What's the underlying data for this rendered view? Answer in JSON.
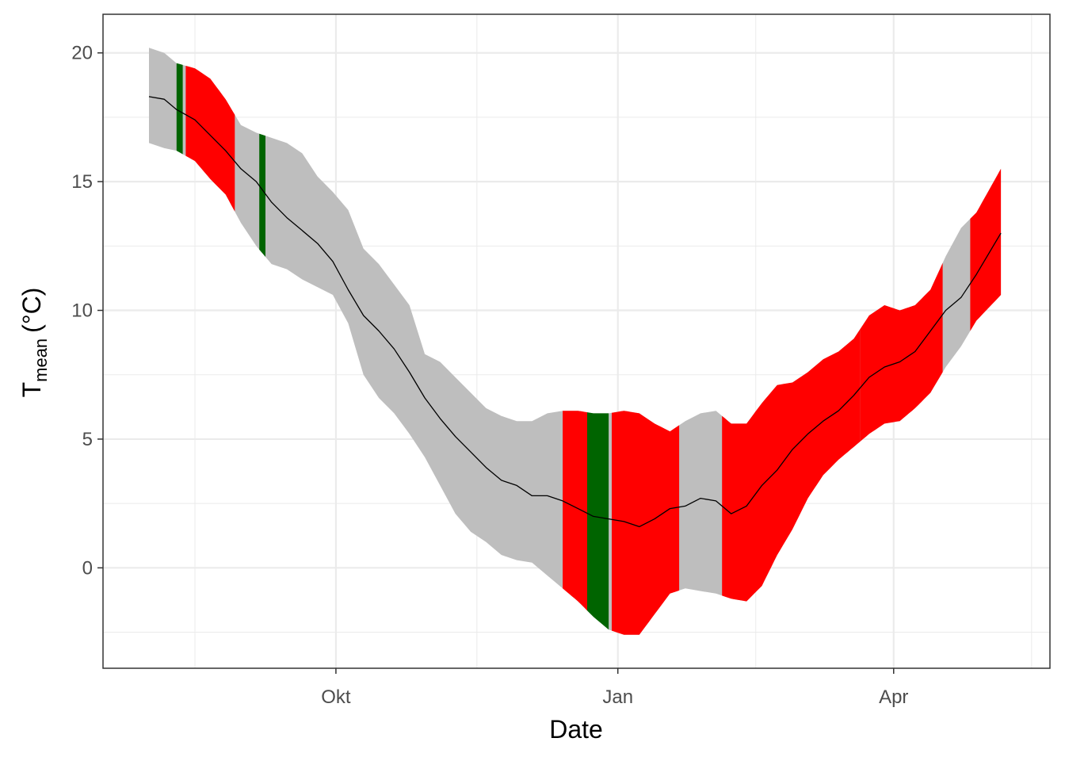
{
  "chart_data": {
    "type": "area",
    "xlabel": "Date",
    "ylabel_main": "T",
    "ylabel_subscript": "mean",
    "ylabel_unit": "(°C)",
    "x_range": [
      "2021-07-17",
      "2022-05-22"
    ],
    "ylim": [
      -3.9,
      21.5
    ],
    "y_ticks": [
      0,
      5,
      10,
      15,
      20
    ],
    "x_ticks": [
      {
        "date": "2021-10-01",
        "label": "Okt"
      },
      {
        "date": "2022-01-01",
        "label": "Jan"
      },
      {
        "date": "2022-04-01",
        "label": "Apr"
      }
    ],
    "x_minor_ticks": [
      "2021-08-16",
      "2021-11-16",
      "2022-02-15",
      "2022-05-16"
    ],
    "grid": true,
    "colors": {
      "ribbon": "#bebebe",
      "warm_anomaly": "#ff0000",
      "cold_anomaly": "#006400",
      "mean_line": "#000000",
      "grid": "#ebebeb",
      "panel_border": "#333333"
    },
    "series": [
      {
        "name": "Tmean",
        "x": [
          "2021-08-01",
          "2021-08-06",
          "2021-08-10",
          "2021-08-16",
          "2021-08-21",
          "2021-08-26",
          "2021-08-31",
          "2021-09-05",
          "2021-09-10",
          "2021-09-15",
          "2021-09-20",
          "2021-09-25",
          "2021-09-30",
          "2021-10-05",
          "2021-10-10",
          "2021-10-15",
          "2021-10-20",
          "2021-10-25",
          "2021-10-30",
          "2021-11-04",
          "2021-11-09",
          "2021-11-14",
          "2021-11-19",
          "2021-11-24",
          "2021-11-29",
          "2021-12-04",
          "2021-12-09",
          "2021-12-14",
          "2021-12-19",
          "2021-12-24",
          "2021-12-29",
          "2022-01-03",
          "2022-01-08",
          "2022-01-13",
          "2022-01-18",
          "2022-01-23",
          "2022-01-28",
          "2022-02-02",
          "2022-02-07",
          "2022-02-12",
          "2022-02-17",
          "2022-02-22",
          "2022-02-27",
          "2022-03-04",
          "2022-03-09",
          "2022-03-14",
          "2022-03-19",
          "2022-03-24",
          "2022-03-29",
          "2022-04-03",
          "2022-04-08",
          "2022-04-13",
          "2022-04-18",
          "2022-04-23",
          "2022-04-28",
          "2022-05-06"
        ],
        "mean": [
          18.3,
          18.2,
          17.8,
          17.4,
          16.8,
          16.2,
          15.5,
          15.0,
          14.2,
          13.6,
          13.1,
          12.6,
          11.9,
          10.8,
          9.8,
          9.2,
          8.5,
          7.6,
          6.6,
          5.8,
          5.1,
          4.5,
          3.9,
          3.4,
          3.2,
          2.8,
          2.8,
          2.6,
          2.3,
          2.0,
          1.9,
          1.8,
          1.6,
          1.9,
          2.3,
          2.4,
          2.7,
          2.6,
          2.1,
          2.4,
          3.2,
          3.8,
          4.6,
          5.2,
          5.7,
          6.1,
          6.7,
          7.4,
          7.8,
          8.0,
          8.4,
          9.2,
          10.0,
          10.5,
          11.4,
          13.0
        ],
        "upper": [
          20.2,
          20.0,
          19.6,
          19.4,
          19.0,
          18.2,
          17.2,
          16.9,
          16.7,
          16.5,
          16.1,
          15.2,
          14.6,
          13.9,
          12.4,
          11.8,
          11.0,
          10.2,
          8.3,
          8.0,
          7.4,
          6.8,
          6.2,
          5.9,
          5.7,
          5.7,
          6.0,
          6.1,
          6.1,
          6.0,
          6.0,
          6.1,
          6.0,
          5.6,
          5.3,
          5.7,
          6.0,
          6.1,
          5.6,
          5.6,
          6.4,
          7.1,
          7.2,
          7.6,
          8.1,
          8.4,
          8.9,
          9.8,
          10.2,
          10.0,
          10.2,
          10.8,
          12.1,
          13.2,
          13.8,
          15.5
        ],
        "lower": [
          16.5,
          16.3,
          16.2,
          15.8,
          15.1,
          14.5,
          13.4,
          12.5,
          11.8,
          11.6,
          11.2,
          10.9,
          10.6,
          9.5,
          7.5,
          6.6,
          6.0,
          5.2,
          4.3,
          3.2,
          2.1,
          1.4,
          1.0,
          0.5,
          0.3,
          0.2,
          -0.3,
          -0.8,
          -1.3,
          -1.9,
          -2.4,
          -2.6,
          -2.6,
          -1.8,
          -1.0,
          -0.8,
          -0.9,
          -1.0,
          -1.2,
          -1.3,
          -0.7,
          0.5,
          1.5,
          2.7,
          3.6,
          4.2,
          4.7,
          5.2,
          5.6,
          5.7,
          6.2,
          6.8,
          7.8,
          8.6,
          9.6,
          10.6
        ]
      }
    ],
    "highlighted_periods": [
      {
        "category": "warm_anomaly",
        "start": "2021-08-13",
        "end": "2021-08-29"
      },
      {
        "category": "warm_anomaly",
        "start": "2021-12-14",
        "end": "2021-12-22"
      },
      {
        "category": "warm_anomaly",
        "start": "2021-12-30",
        "end": "2022-01-21"
      },
      {
        "category": "warm_anomaly",
        "start": "2022-02-04",
        "end": "2022-03-21"
      },
      {
        "category": "warm_anomaly",
        "start": "2022-03-21",
        "end": "2022-04-17"
      },
      {
        "category": "warm_anomaly",
        "start": "2022-04-26",
        "end": "2022-05-06"
      },
      {
        "category": "cold_anomaly",
        "start": "2021-08-10",
        "end": "2021-08-12"
      },
      {
        "category": "cold_anomaly",
        "start": "2021-09-06",
        "end": "2021-09-08"
      },
      {
        "category": "cold_anomaly",
        "start": "2021-12-22",
        "end": "2021-12-29"
      }
    ]
  }
}
